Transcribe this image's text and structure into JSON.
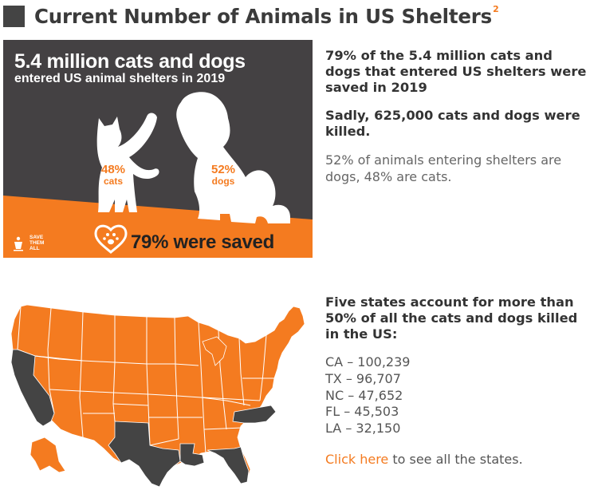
{
  "header": {
    "title": "Current Number of Animals in US Shelters",
    "superscript": "2"
  },
  "infographic": {
    "title": "5.4 million cats and dogs",
    "subtitle": "entered US animal shelters in 2019",
    "cats_pct": "48%",
    "cats_label": "cats",
    "dogs_pct": "52%",
    "dogs_label": "dogs",
    "saved_text": "79% were saved",
    "logo_lines": [
      "SAVE",
      "THEM",
      "ALL"
    ],
    "colors": {
      "background": "#444143",
      "accent": "#f47b20",
      "silhouette": "#ffffff"
    },
    "icons": [
      "cat-silhouette",
      "dog-silhouette",
      "heart-paw-icon",
      "best-friends-logo"
    ]
  },
  "facts": {
    "fact1": "79% of the 5.4 million cats and dogs that entered US shelters were saved in 2019",
    "fact2": "Sadly, 625,000 cats and dogs were killed.",
    "fact3": "52% of animals entering shelters are dogs, 48% are cats."
  },
  "map": {
    "highlighted_color": "#444444",
    "base_color": "#f47b20",
    "highlighted_states": [
      "California",
      "Texas",
      "North Carolina",
      "Florida",
      "Louisiana"
    ]
  },
  "states": {
    "heading": "Five states account for more than 50% of all the cats and dogs killed in the US:",
    "list": [
      "CA – 100,239",
      "TX – 96,707",
      "NC – 47,652",
      "FL – 45,503",
      "LA – 32,150"
    ],
    "link_text": "Click here",
    "link_suffix": " to see all the states."
  }
}
